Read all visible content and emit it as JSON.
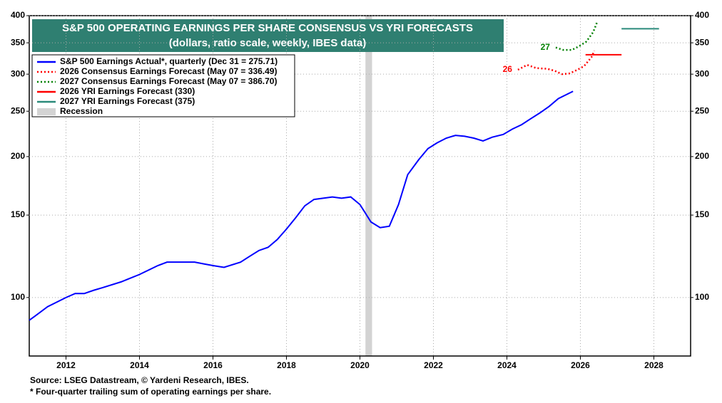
{
  "chart_data": {
    "type": "line",
    "title": "S&P 500 OPERATING EARNINGS PER SHARE CONSENSUS VS YRI FORECASTS",
    "subtitle": "(dollars, ratio scale, weekly, IBES data)",
    "yscale": "log",
    "grid": true,
    "legend": "upper left",
    "xlim": [
      2011,
      2029
    ],
    "xticks": [
      2012,
      2014,
      2016,
      2018,
      2020,
      2022,
      2024,
      2026,
      2028
    ],
    "ylim": [
      75,
      400
    ],
    "yticks": [
      100,
      150,
      200,
      250,
      300,
      350,
      400
    ],
    "series": [
      {
        "name": "S&P 500 Earnings Actual*, quarterly (Dec 31 = 275.71)",
        "color": "#0000ff",
        "style": "solid",
        "x": [
          2011.0,
          2011.16,
          2011.5,
          2012.0,
          2012.25,
          2012.5,
          2012.75,
          2013.0,
          2013.5,
          2013.75,
          2014.0,
          2014.5,
          2014.75,
          2015.5,
          2015.75,
          2016.0,
          2016.3,
          2016.75,
          2017.0,
          2017.25,
          2017.5,
          2017.75,
          2018.0,
          2018.25,
          2018.5,
          2018.75,
          2019.0,
          2019.25,
          2019.5,
          2019.75,
          2020.0,
          2020.3,
          2020.55,
          2020.8,
          2021.05,
          2021.3,
          2021.6,
          2021.85,
          2022.1,
          2022.35,
          2022.6,
          2022.85,
          2023.1,
          2023.35,
          2023.6,
          2023.9,
          2024.15,
          2024.4,
          2024.65,
          2024.9,
          2025.15,
          2025.4,
          2025.8
        ],
        "values": [
          89.4,
          91.3,
          95.6,
          100,
          102,
          102,
          103.6,
          105,
          108,
          110,
          112,
          117,
          119,
          119,
          118,
          117,
          116,
          119,
          122.5,
          126,
          128,
          133,
          140,
          148,
          157,
          162,
          163,
          164,
          163,
          164,
          158,
          145,
          141,
          142,
          158,
          183,
          197,
          208,
          214,
          219,
          222,
          221,
          219,
          216,
          220,
          223,
          229,
          234,
          241,
          248,
          256,
          266,
          275.71
        ]
      },
      {
        "name": "2026 Consensus Earnings Forecast (May 07 = 336.49)",
        "color": "#ff0000",
        "style": "dotted",
        "label": "26",
        "x": [
          2024.3,
          2024.55,
          2024.8,
          2025.1,
          2025.3,
          2025.5,
          2025.7,
          2025.9,
          2026.1,
          2026.3,
          2026.38
        ],
        "values": [
          306.5,
          314,
          309,
          308,
          305,
          300,
          301,
          306,
          312,
          326,
          336.49
        ]
      },
      {
        "name": "2027 Consensus Earnings Forecast (May 07 = 386.70)",
        "color": "#008000",
        "style": "dotted",
        "label": "27",
        "x": [
          2025.33,
          2025.53,
          2025.77,
          2025.96,
          2026.16,
          2026.35,
          2026.45
        ],
        "values": [
          342,
          338,
          338,
          344,
          352,
          369,
          386.7
        ]
      },
      {
        "name": "2026 YRI Earnings Forecast (330)",
        "color": "#ff0000",
        "style": "solid",
        "x": [
          2026.14,
          2027.12
        ],
        "values": [
          330,
          330
        ]
      },
      {
        "name": "2027 YRI Earnings Forecast (375)",
        "color": "#2a8a7a",
        "style": "solid",
        "x": [
          2027.12,
          2028.14
        ],
        "values": [
          375,
          375
        ]
      }
    ],
    "recession": {
      "name": "Recession",
      "start": 2020.15,
      "end": 2020.33,
      "color": "#d3d3d3"
    },
    "footnotes": [
      "Source: LSEG Datastream, © Yardeni Research, IBES.",
      "* Four-quarter trailing sum of operating earnings per share."
    ]
  }
}
